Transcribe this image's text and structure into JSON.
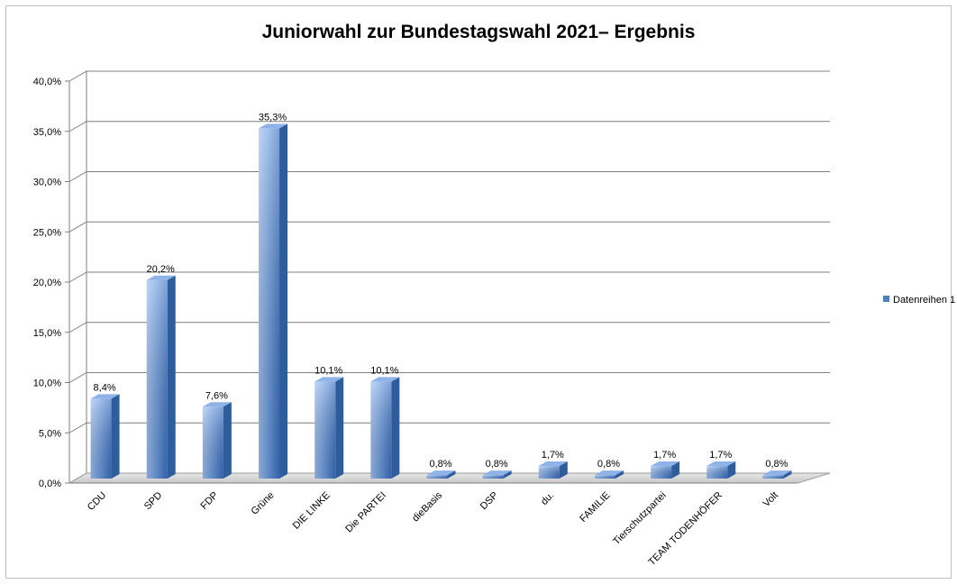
{
  "chart_data": {
    "type": "bar",
    "title": "Juniorwahl zur Bundestagswahl 2021– Ergebnis",
    "categories": [
      "CDU",
      "SPD",
      "FDP",
      "Grüne",
      "DIE LINKE",
      "Die PARTEI",
      "dieBasis",
      "DSP",
      "du.",
      "FAMILIE",
      "Tierschutzpartei",
      "TEAM TODENHÖFER",
      "Volt"
    ],
    "series": [
      {
        "name": "Datenreihen 1",
        "values": [
          8.4,
          20.2,
          7.6,
          35.3,
          10.1,
          10.1,
          0.8,
          0.8,
          1.7,
          0.8,
          1.7,
          1.7,
          0.8
        ],
        "labels": [
          "8,4%",
          "20,2%",
          "7,6%",
          "35,3%",
          "10,1%",
          "10,1%",
          "0,8%",
          "0,8%",
          "1,7%",
          "0,8%",
          "1,7%",
          "1,7%",
          "0,8%"
        ]
      }
    ],
    "ylim": [
      0,
      40
    ],
    "yticks": [
      "0,0%",
      "5,0%",
      "10,0%",
      "15,0%",
      "20,0%",
      "25,0%",
      "30,0%",
      "35,0%",
      "40,0%"
    ],
    "grid": true,
    "legend": "right",
    "style": "3d-column",
    "colors": {
      "bar_light": "#a7c4ef",
      "bar_mid": "#5b8ed6",
      "bar_dark": "#2f5fa8",
      "bar_top": "#8fb3e8",
      "bar_side": "#2e5d9e",
      "grid": "#7f7f7f",
      "floor": "#d9d9d9"
    }
  },
  "legend": {
    "label": "Datenreihen 1"
  }
}
